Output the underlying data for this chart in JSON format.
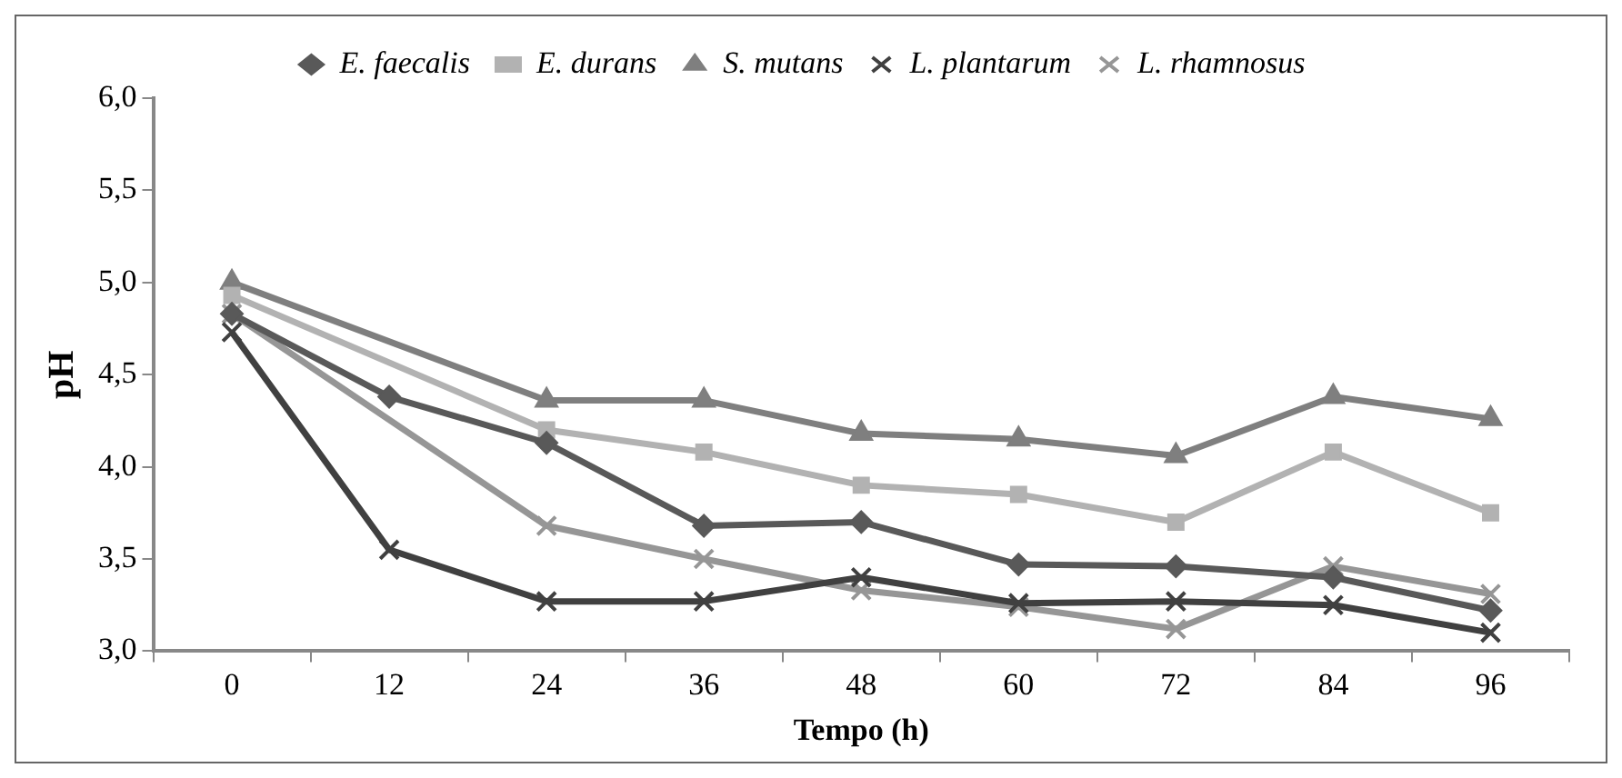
{
  "chart_data": {
    "type": "line",
    "xlabel": "Tempo (h)",
    "ylabel": "pH",
    "categories": [
      "0",
      "12",
      "24",
      "36",
      "48",
      "60",
      "72",
      "84",
      "96"
    ],
    "ylim": [
      3,
      6
    ],
    "yticks": [
      {
        "value": 3,
        "label": "3,0"
      },
      {
        "value": 3.5,
        "label": "3,5"
      },
      {
        "value": 4,
        "label": "4,0"
      },
      {
        "value": 4.5,
        "label": "4,5"
      },
      {
        "value": 5,
        "label": "5,0"
      },
      {
        "value": 5.5,
        "label": "5,5"
      },
      {
        "value": 6,
        "label": "6,0"
      }
    ],
    "grid": false,
    "legend": "top",
    "series": [
      {
        "name": "E. faecalis",
        "color": "#595959",
        "marker": "diamond",
        "values": [
          4.83,
          4.38,
          4.13,
          3.68,
          3.7,
          3.47,
          3.46,
          3.4,
          3.22
        ]
      },
      {
        "name": "E. durans",
        "color": "#b2b2b2",
        "marker": "square",
        "values": [
          4.93,
          null,
          4.2,
          4.08,
          3.9,
          3.85,
          3.7,
          4.08,
          3.75
        ]
      },
      {
        "name": "S. mutans",
        "color": "#7f7f7f",
        "marker": "triangle",
        "values": [
          5.0,
          null,
          4.36,
          4.36,
          4.18,
          4.15,
          4.06,
          4.38,
          4.26
        ]
      },
      {
        "name": "L. plantarum",
        "color": "#404040",
        "marker": "cross",
        "values": [
          4.73,
          3.55,
          3.27,
          3.27,
          3.4,
          3.26,
          3.27,
          3.25,
          3.1
        ]
      },
      {
        "name": "L. rhamnosus",
        "color": "#969696",
        "marker": "cross",
        "values": [
          4.83,
          null,
          3.68,
          3.5,
          3.33,
          3.24,
          3.12,
          3.46,
          3.31
        ]
      }
    ]
  }
}
